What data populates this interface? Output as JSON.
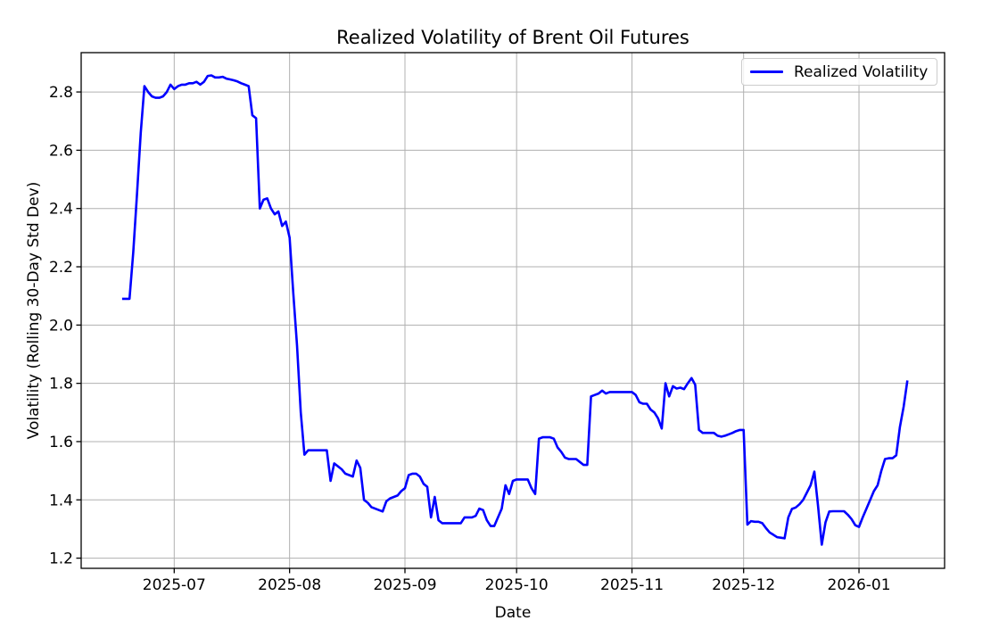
{
  "figure": {
    "title": "Realized Volatility of Brent Oil Futures",
    "xlabel": "Date",
    "ylabel": "Volatility (Rolling 30-Day Std Dev)",
    "legend": {
      "label": "Realized Volatility"
    }
  },
  "colors": {
    "line": "#0000ff",
    "grid": "#b0b0b0",
    "spine": "#000000",
    "legend_border": "#cccccc",
    "background": "#ffffff"
  },
  "chart_data": {
    "type": "line",
    "title": "Realized Volatility of Brent Oil Futures",
    "xlabel": "Date",
    "ylabel": "Volatility (Rolling 30-Day Std Dev)",
    "legend": [
      "Realized Volatility"
    ],
    "legend_position": "upper right",
    "grid": true,
    "xlim": [
      "2025-06-06",
      "2026-01-24"
    ],
    "ylim": [
      1.165,
      2.935
    ],
    "x_ticks": {
      "positions": [
        "2025-07-01",
        "2025-08-01",
        "2025-09-01",
        "2025-10-01",
        "2025-11-01",
        "2025-12-01",
        "2026-01-01"
      ],
      "labels": [
        "2025-07",
        "2025-08",
        "2025-09",
        "2025-10",
        "2025-11",
        "2025-12",
        "2026-01"
      ]
    },
    "y_ticks": {
      "positions": [
        1.2,
        1.4,
        1.6,
        1.8,
        2.0,
        2.2,
        2.4,
        2.6,
        2.8
      ],
      "labels": [
        "1.2",
        "1.4",
        "1.6",
        "1.8",
        "2.0",
        "2.2",
        "2.4",
        "2.6",
        "2.8"
      ]
    },
    "series": [
      {
        "name": "Realized Volatility",
        "color": "#0000ff",
        "points": [
          [
            "2025-06-17",
            2.09
          ],
          [
            "2025-06-18",
            2.09
          ],
          [
            "2025-06-19",
            2.09
          ],
          [
            "2025-06-20",
            2.25
          ],
          [
            "2025-06-21",
            2.45
          ],
          [
            "2025-06-22",
            2.66
          ],
          [
            "2025-06-23",
            2.82
          ],
          [
            "2025-06-24",
            2.8
          ],
          [
            "2025-06-25",
            2.785
          ],
          [
            "2025-06-26",
            2.78
          ],
          [
            "2025-06-27",
            2.78
          ],
          [
            "2025-06-28",
            2.785
          ],
          [
            "2025-06-29",
            2.8
          ],
          [
            "2025-06-30",
            2.825
          ],
          [
            "2025-07-01",
            2.81
          ],
          [
            "2025-07-02",
            2.82
          ],
          [
            "2025-07-03",
            2.825
          ],
          [
            "2025-07-04",
            2.825
          ],
          [
            "2025-07-05",
            2.83
          ],
          [
            "2025-07-06",
            2.83
          ],
          [
            "2025-07-07",
            2.835
          ],
          [
            "2025-07-08",
            2.825
          ],
          [
            "2025-07-09",
            2.835
          ],
          [
            "2025-07-10",
            2.855
          ],
          [
            "2025-07-11",
            2.857
          ],
          [
            "2025-07-12",
            2.85
          ],
          [
            "2025-07-13",
            2.85
          ],
          [
            "2025-07-14",
            2.852
          ],
          [
            "2025-07-15",
            2.846
          ],
          [
            "2025-07-16",
            2.843
          ],
          [
            "2025-07-17",
            2.84
          ],
          [
            "2025-07-18",
            2.836
          ],
          [
            "2025-07-19",
            2.83
          ],
          [
            "2025-07-20",
            2.825
          ],
          [
            "2025-07-21",
            2.82
          ],
          [
            "2025-07-22",
            2.72
          ],
          [
            "2025-07-23",
            2.71
          ],
          [
            "2025-07-24",
            2.4
          ],
          [
            "2025-07-25",
            2.43
          ],
          [
            "2025-07-26",
            2.435
          ],
          [
            "2025-07-27",
            2.4
          ],
          [
            "2025-07-28",
            2.38
          ],
          [
            "2025-07-29",
            2.39
          ],
          [
            "2025-07-30",
            2.34
          ],
          [
            "2025-07-31",
            2.355
          ],
          [
            "2025-08-01",
            2.3
          ],
          [
            "2025-08-02",
            2.11
          ],
          [
            "2025-08-03",
            1.93
          ],
          [
            "2025-08-04",
            1.7
          ],
          [
            "2025-08-05",
            1.555
          ],
          [
            "2025-08-06",
            1.57
          ],
          [
            "2025-08-07",
            1.57
          ],
          [
            "2025-08-08",
            1.57
          ],
          [
            "2025-08-09",
            1.57
          ],
          [
            "2025-08-10",
            1.57
          ],
          [
            "2025-08-11",
            1.57
          ],
          [
            "2025-08-12",
            1.465
          ],
          [
            "2025-08-13",
            1.525
          ],
          [
            "2025-08-14",
            1.515
          ],
          [
            "2025-08-15",
            1.505
          ],
          [
            "2025-08-16",
            1.49
          ],
          [
            "2025-08-17",
            1.485
          ],
          [
            "2025-08-18",
            1.48
          ],
          [
            "2025-08-19",
            1.535
          ],
          [
            "2025-08-20",
            1.51
          ],
          [
            "2025-08-21",
            1.4
          ],
          [
            "2025-08-22",
            1.39
          ],
          [
            "2025-08-23",
            1.375
          ],
          [
            "2025-08-24",
            1.37
          ],
          [
            "2025-08-25",
            1.365
          ],
          [
            "2025-08-26",
            1.36
          ],
          [
            "2025-08-27",
            1.395
          ],
          [
            "2025-08-28",
            1.405
          ],
          [
            "2025-08-29",
            1.41
          ],
          [
            "2025-08-30",
            1.415
          ],
          [
            "2025-08-31",
            1.43
          ],
          [
            "2025-09-01",
            1.44
          ],
          [
            "2025-09-02",
            1.485
          ],
          [
            "2025-09-03",
            1.49
          ],
          [
            "2025-09-04",
            1.49
          ],
          [
            "2025-09-05",
            1.48
          ],
          [
            "2025-09-06",
            1.455
          ],
          [
            "2025-09-07",
            1.445
          ],
          [
            "2025-09-08",
            1.34
          ],
          [
            "2025-09-09",
            1.41
          ],
          [
            "2025-09-10",
            1.33
          ],
          [
            "2025-09-11",
            1.32
          ],
          [
            "2025-09-12",
            1.32
          ],
          [
            "2025-09-13",
            1.32
          ],
          [
            "2025-09-14",
            1.32
          ],
          [
            "2025-09-15",
            1.32
          ],
          [
            "2025-09-16",
            1.32
          ],
          [
            "2025-09-17",
            1.34
          ],
          [
            "2025-09-18",
            1.34
          ],
          [
            "2025-09-19",
            1.34
          ],
          [
            "2025-09-20",
            1.345
          ],
          [
            "2025-09-21",
            1.37
          ],
          [
            "2025-09-22",
            1.365
          ],
          [
            "2025-09-23",
            1.33
          ],
          [
            "2025-09-24",
            1.31
          ],
          [
            "2025-09-25",
            1.31
          ],
          [
            "2025-09-26",
            1.34
          ],
          [
            "2025-09-27",
            1.37
          ],
          [
            "2025-09-28",
            1.45
          ],
          [
            "2025-09-29",
            1.42
          ],
          [
            "2025-09-30",
            1.465
          ],
          [
            "2025-10-01",
            1.47
          ],
          [
            "2025-10-02",
            1.47
          ],
          [
            "2025-10-03",
            1.47
          ],
          [
            "2025-10-04",
            1.47
          ],
          [
            "2025-10-05",
            1.44
          ],
          [
            "2025-10-06",
            1.42
          ],
          [
            "2025-10-07",
            1.61
          ],
          [
            "2025-10-08",
            1.615
          ],
          [
            "2025-10-09",
            1.615
          ],
          [
            "2025-10-10",
            1.615
          ],
          [
            "2025-10-11",
            1.61
          ],
          [
            "2025-10-12",
            1.58
          ],
          [
            "2025-10-13",
            1.565
          ],
          [
            "2025-10-14",
            1.545
          ],
          [
            "2025-10-15",
            1.54
          ],
          [
            "2025-10-16",
            1.54
          ],
          [
            "2025-10-17",
            1.54
          ],
          [
            "2025-10-18",
            1.53
          ],
          [
            "2025-10-19",
            1.52
          ],
          [
            "2025-10-20",
            1.52
          ],
          [
            "2025-10-21",
            1.755
          ],
          [
            "2025-10-22",
            1.76
          ],
          [
            "2025-10-23",
            1.765
          ],
          [
            "2025-10-24",
            1.775
          ],
          [
            "2025-10-25",
            1.765
          ],
          [
            "2025-10-26",
            1.77
          ],
          [
            "2025-10-27",
            1.77
          ],
          [
            "2025-10-28",
            1.77
          ],
          [
            "2025-10-29",
            1.77
          ],
          [
            "2025-10-30",
            1.77
          ],
          [
            "2025-10-31",
            1.77
          ],
          [
            "2025-11-01",
            1.77
          ],
          [
            "2025-11-02",
            1.76
          ],
          [
            "2025-11-03",
            1.735
          ],
          [
            "2025-11-04",
            1.73
          ],
          [
            "2025-11-05",
            1.73
          ],
          [
            "2025-11-06",
            1.71
          ],
          [
            "2025-11-07",
            1.7
          ],
          [
            "2025-11-08",
            1.68
          ],
          [
            "2025-11-09",
            1.645
          ],
          [
            "2025-11-10",
            1.8
          ],
          [
            "2025-11-11",
            1.755
          ],
          [
            "2025-11-12",
            1.79
          ],
          [
            "2025-11-13",
            1.782
          ],
          [
            "2025-11-14",
            1.785
          ],
          [
            "2025-11-15",
            1.78
          ],
          [
            "2025-11-16",
            1.8
          ],
          [
            "2025-11-17",
            1.818
          ],
          [
            "2025-11-18",
            1.795
          ],
          [
            "2025-11-19",
            1.64
          ],
          [
            "2025-11-20",
            1.63
          ],
          [
            "2025-11-21",
            1.63
          ],
          [
            "2025-11-22",
            1.63
          ],
          [
            "2025-11-23",
            1.63
          ],
          [
            "2025-11-24",
            1.62
          ],
          [
            "2025-11-25",
            1.617
          ],
          [
            "2025-11-26",
            1.62
          ],
          [
            "2025-11-27",
            1.625
          ],
          [
            "2025-11-28",
            1.63
          ],
          [
            "2025-11-29",
            1.636
          ],
          [
            "2025-11-30",
            1.64
          ],
          [
            "2025-12-01",
            1.64
          ],
          [
            "2025-12-02",
            1.315
          ],
          [
            "2025-12-03",
            1.327
          ],
          [
            "2025-12-04",
            1.325
          ],
          [
            "2025-12-05",
            1.325
          ],
          [
            "2025-12-06",
            1.32
          ],
          [
            "2025-12-07",
            1.303
          ],
          [
            "2025-12-08",
            1.288
          ],
          [
            "2025-12-09",
            1.28
          ],
          [
            "2025-12-10",
            1.272
          ],
          [
            "2025-12-11",
            1.27
          ],
          [
            "2025-12-12",
            1.268
          ],
          [
            "2025-12-13",
            1.34
          ],
          [
            "2025-12-14",
            1.369
          ],
          [
            "2025-12-15",
            1.374
          ],
          [
            "2025-12-16",
            1.385
          ],
          [
            "2025-12-17",
            1.4
          ],
          [
            "2025-12-18",
            1.425
          ],
          [
            "2025-12-19",
            1.45
          ],
          [
            "2025-12-20",
            1.497
          ],
          [
            "2025-12-21",
            1.38
          ],
          [
            "2025-12-22",
            1.246
          ],
          [
            "2025-12-23",
            1.323
          ],
          [
            "2025-12-24",
            1.36
          ],
          [
            "2025-12-25",
            1.361
          ],
          [
            "2025-12-26",
            1.361
          ],
          [
            "2025-12-27",
            1.361
          ],
          [
            "2025-12-28",
            1.361
          ],
          [
            "2025-12-29",
            1.349
          ],
          [
            "2025-12-30",
            1.334
          ],
          [
            "2025-12-31",
            1.313
          ],
          [
            "2026-01-01",
            1.307
          ],
          [
            "2026-01-02",
            1.34
          ],
          [
            "2026-01-03",
            1.37
          ],
          [
            "2026-01-04",
            1.4
          ],
          [
            "2026-01-05",
            1.43
          ],
          [
            "2026-01-06",
            1.45
          ],
          [
            "2026-01-07",
            1.5
          ],
          [
            "2026-01-08",
            1.54
          ],
          [
            "2026-01-09",
            1.543
          ],
          [
            "2026-01-10",
            1.543
          ],
          [
            "2026-01-11",
            1.553
          ],
          [
            "2026-01-12",
            1.65
          ],
          [
            "2026-01-13",
            1.72
          ],
          [
            "2026-01-14",
            1.81
          ]
        ]
      }
    ]
  }
}
